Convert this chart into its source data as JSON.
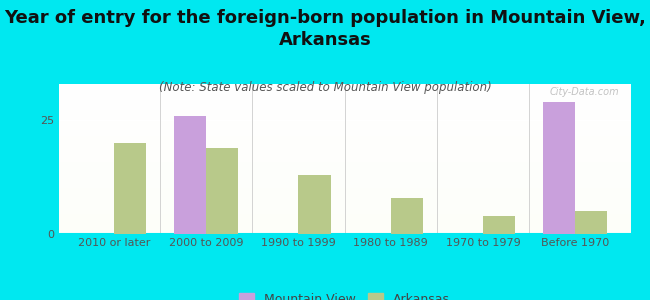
{
  "title": "Year of entry for the foreign-born population in Mountain View,\nArkansas",
  "subtitle": "(Note: State values scaled to Mountain View population)",
  "categories": [
    "2010 or later",
    "2000 to 2009",
    "1990 to 1999",
    "1980 to 1989",
    "1970 to 1979",
    "Before 1970"
  ],
  "mountain_view": [
    0,
    26,
    0,
    0,
    0,
    29
  ],
  "arkansas": [
    20,
    19,
    13,
    8,
    4,
    5
  ],
  "mv_color": "#c9a0dc",
  "ar_color": "#b8c98a",
  "bg_outer": "#00e8f0",
  "yticks": [
    0,
    25
  ],
  "ylim": [
    0,
    33
  ],
  "bar_width": 0.35,
  "title_fontsize": 13,
  "subtitle_fontsize": 8.5,
  "tick_fontsize": 8,
  "legend_fontsize": 9,
  "watermark": "City-Data.com"
}
